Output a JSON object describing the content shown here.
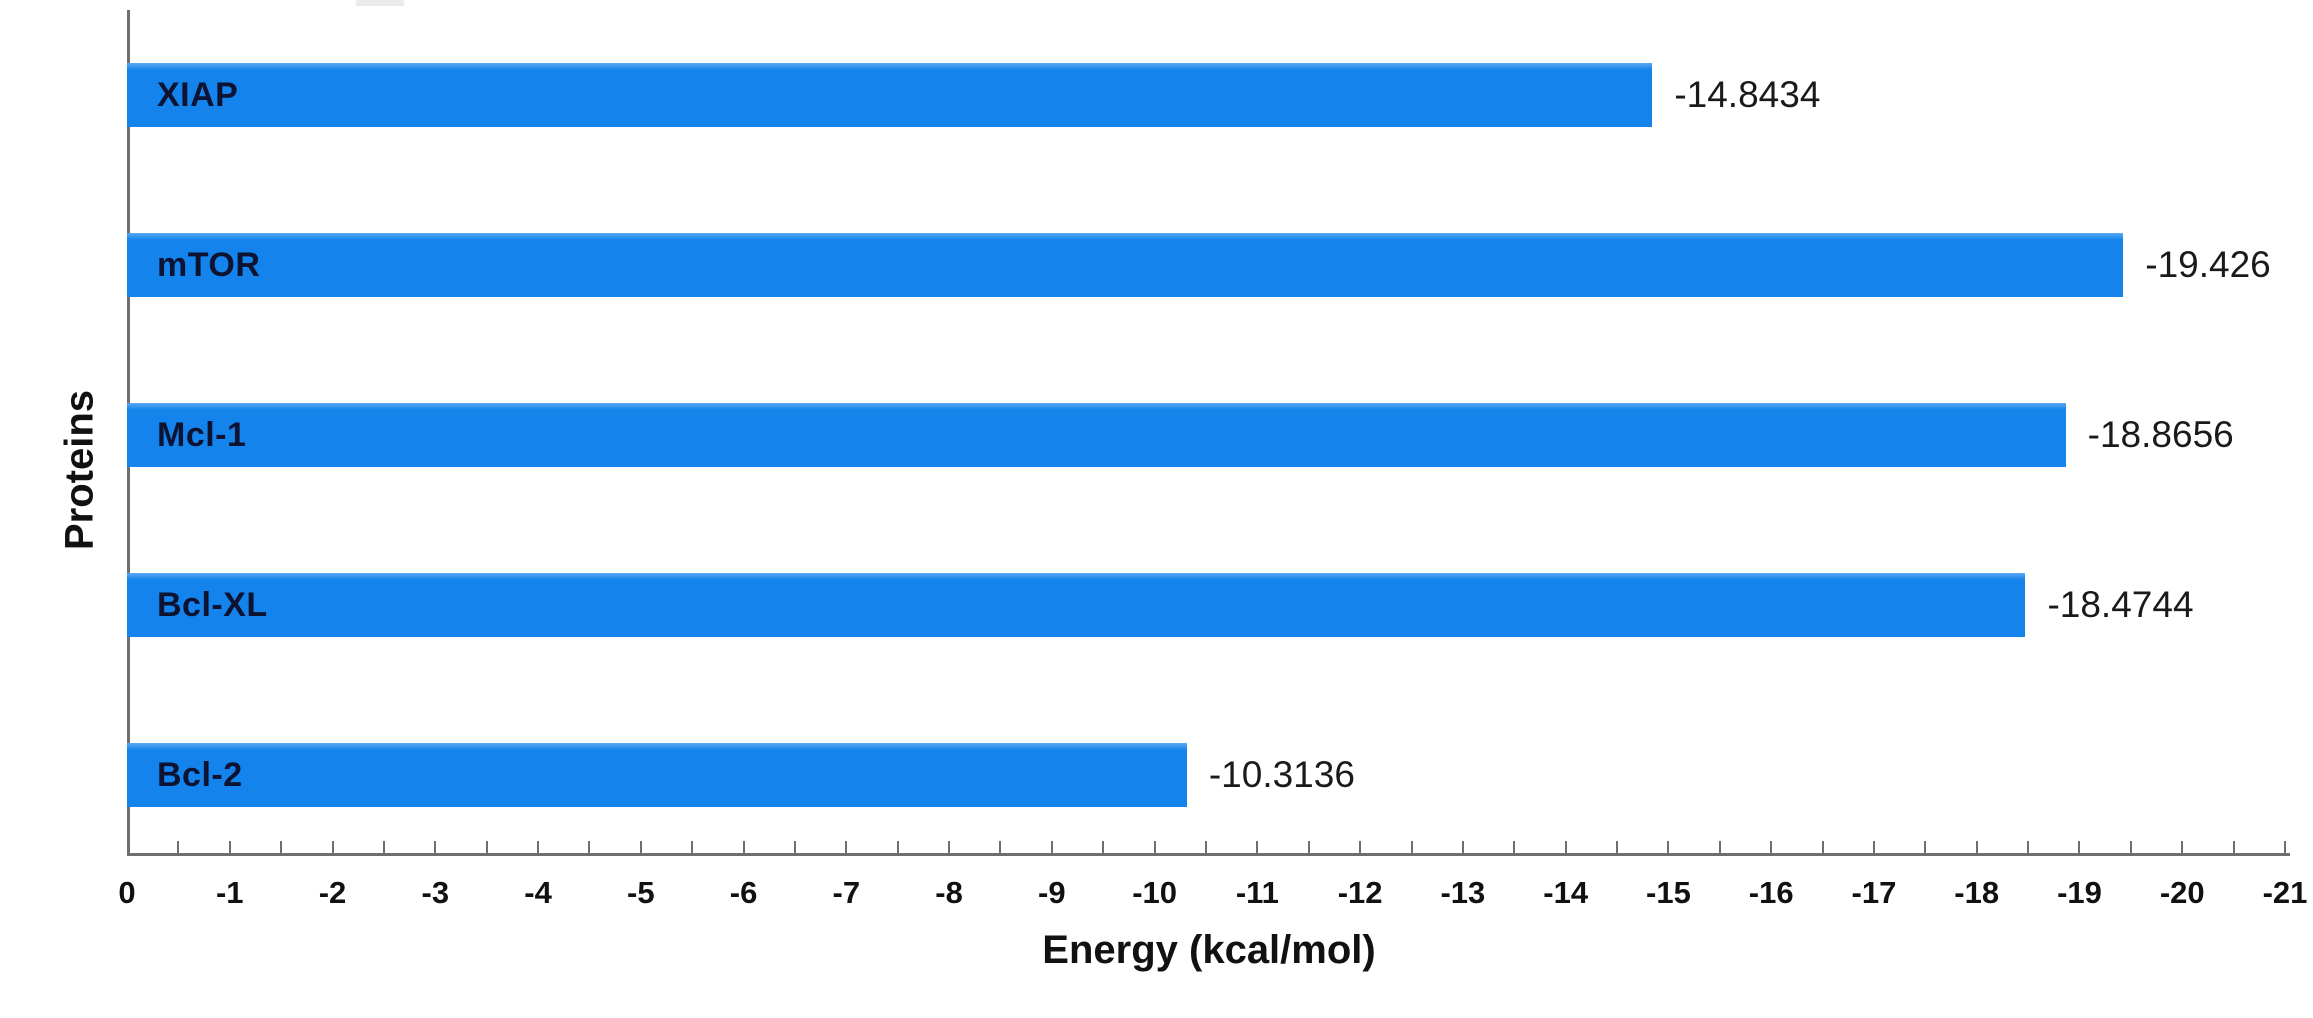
{
  "chart_data": {
    "type": "bar",
    "orientation": "horizontal",
    "title": "",
    "xlabel": "Energy (kcal/mol)",
    "ylabel": "Proteins",
    "categories": [
      "XIAP",
      "mTOR",
      "Mcl-1",
      "Bcl-XL",
      "Bcl-2"
    ],
    "values": [
      -14.8434,
      -19.426,
      -18.8656,
      -18.4744,
      -10.3136
    ],
    "value_labels": [
      "-14.8434",
      "-19.426",
      "-18.8656",
      "-18.4744",
      "-10.3136"
    ],
    "xlim": [
      0,
      -21
    ],
    "x_tick_labels": [
      "0",
      "-1",
      "-2",
      "-3",
      "-4",
      "-5",
      "-6",
      "-7",
      "-8",
      "-9",
      "-10",
      "-11",
      "-12",
      "-13",
      "-14",
      "-15",
      "-16",
      "-17",
      "-18",
      "-19",
      "-20",
      "-21"
    ],
    "x_minor_tick_step": 0.5,
    "grid": false,
    "legend": "none",
    "colors": {
      "bar": "#1483ec",
      "bar_top_highlight": "#5aa9f3",
      "bar_label": "#0d1331",
      "value_label": "#1a1a1a",
      "axis_line": "#6e6e6e",
      "tick_label": "#111111",
      "axis_title": "#111111"
    }
  }
}
